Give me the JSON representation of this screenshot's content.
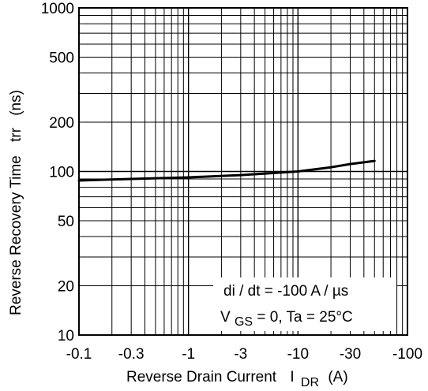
{
  "chart_data": {
    "type": "line",
    "x_scale": "log-negative",
    "y_scale": "log",
    "xlim": [
      -0.1,
      -100
    ],
    "ylim": [
      10,
      1000
    ],
    "x_ticks": [
      -0.1,
      -0.3,
      -1,
      -3,
      -10,
      -30,
      -100
    ],
    "x_tick_labels": [
      "-0.1",
      "-0.3",
      "-1",
      "-3",
      "-10",
      "-30",
      "-100"
    ],
    "y_ticks": [
      10,
      20,
      50,
      100,
      200,
      500,
      1000
    ],
    "y_tick_labels": [
      "10",
      "20",
      "50",
      "100",
      "200",
      "500",
      "1000"
    ],
    "xlabel": {
      "main": "Reverse Drain Current",
      "symbol": "I",
      "subscript": "DR",
      "unit": "(A)"
    },
    "ylabel": {
      "main": "Reverse Recovery Time",
      "symbol": "trr",
      "unit": "(ns)"
    },
    "annotations": {
      "line1": "di / dt = -100 A / µs",
      "line2_symbol": "V",
      "line2_subscript": "GS",
      "line2_rest": " = 0, Ta = 25°C"
    },
    "grid": true,
    "series": [
      {
        "color": "#000000",
        "x": [
          -0.1,
          -0.3,
          -1,
          -3,
          -10,
          -20,
          -30,
          -50
        ],
        "y": [
          88,
          90,
          92,
          95,
          100,
          106,
          111,
          116
        ]
      }
    ]
  }
}
